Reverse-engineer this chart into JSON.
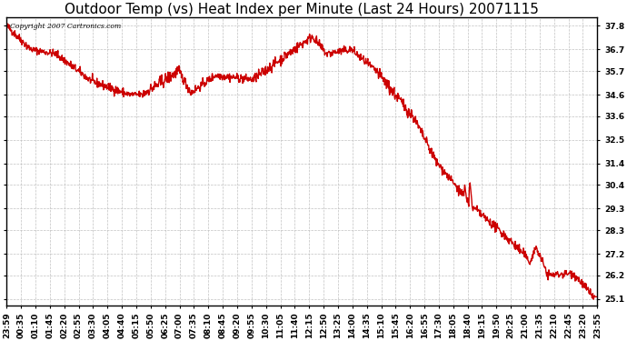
{
  "title": "Outdoor Temp (vs) Heat Index per Minute (Last 24 Hours) 20071115",
  "copyright_text": "Copyright 2007 Cartronics.com",
  "line_color": "#cc0000",
  "background_color": "#ffffff",
  "plot_bg_color": "#ffffff",
  "grid_color": "#bbbbbb",
  "yticks": [
    25.1,
    26.2,
    27.2,
    28.3,
    29.3,
    30.4,
    31.4,
    32.5,
    33.6,
    34.6,
    35.7,
    36.7,
    37.8
  ],
  "ylim": [
    24.8,
    38.2
  ],
  "xtick_labels": [
    "23:59",
    "00:35",
    "01:10",
    "01:45",
    "02:20",
    "02:55",
    "03:30",
    "04:05",
    "04:40",
    "05:15",
    "05:50",
    "06:25",
    "07:00",
    "07:35",
    "08:10",
    "08:45",
    "09:20",
    "09:55",
    "10:30",
    "11:05",
    "11:40",
    "12:15",
    "12:50",
    "13:25",
    "14:00",
    "14:35",
    "15:10",
    "15:45",
    "16:20",
    "16:55",
    "17:30",
    "18:05",
    "18:40",
    "19:15",
    "19:50",
    "20:25",
    "21:00",
    "21:35",
    "22:10",
    "22:45",
    "23:20",
    "23:55"
  ],
  "title_fontsize": 11,
  "tick_fontsize": 6.5,
  "line_width": 1.0
}
